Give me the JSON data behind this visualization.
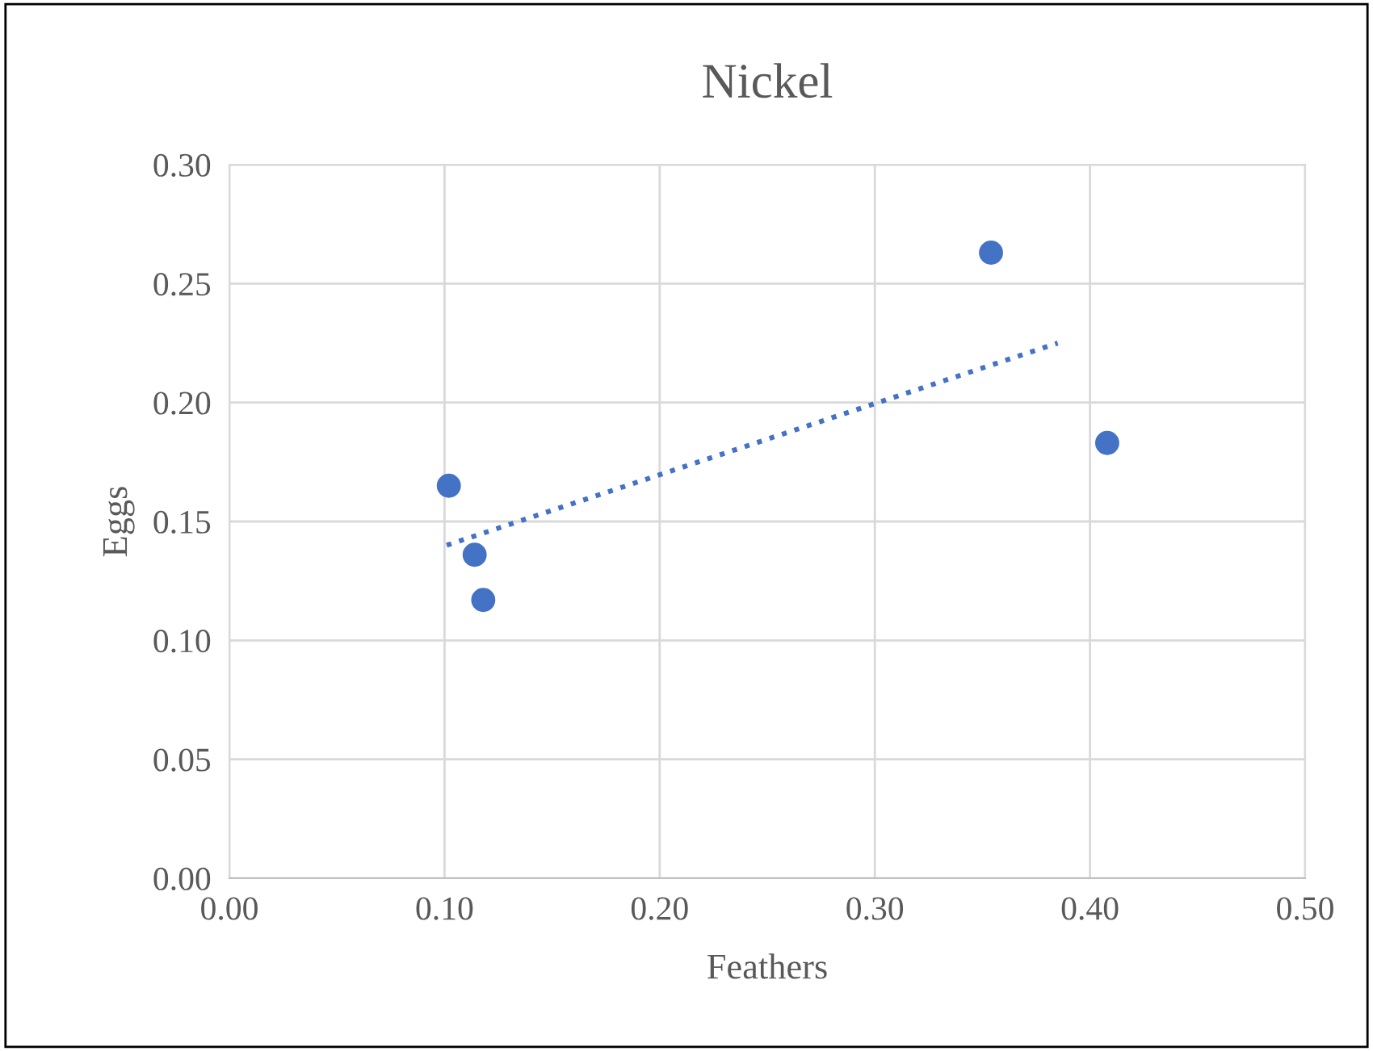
{
  "chart_data": {
    "type": "scatter",
    "title": "Nickel",
    "xlabel": "Feathers",
    "ylabel": "Eggs",
    "xlim": [
      0,
      0.5
    ],
    "xticks": [
      {
        "value": 0,
        "label": "0.00"
      },
      {
        "value": 0.1,
        "label": "0.10"
      },
      {
        "value": 0.2,
        "label": "0.20"
      },
      {
        "value": 0.3,
        "label": "0.30"
      },
      {
        "value": 0.4,
        "label": "0.40"
      },
      {
        "value": 0.5,
        "label": "0.50"
      }
    ],
    "ylim": [
      0,
      0.3
    ],
    "yticks": [
      {
        "value": 0,
        "label": "0.00"
      },
      {
        "value": 0.05,
        "label": "0.05"
      },
      {
        "value": 0.1,
        "label": "0.10"
      },
      {
        "value": 0.15,
        "label": "0.15"
      },
      {
        "value": 0.2,
        "label": "0.20"
      },
      {
        "value": 0.25,
        "label": "0.25"
      },
      {
        "value": 0.3,
        "label": "0.30"
      }
    ],
    "grid": true,
    "series": [
      {
        "color": "#4472c4",
        "marker": "circle",
        "x": [
          0.102,
          0.114,
          0.118,
          0.354,
          0.408
        ],
        "values": [
          0.165,
          0.136,
          0.117,
          0.263,
          0.183
        ]
      },
      {
        "type": "line",
        "color": "#4472c4",
        "line_style": "dotted",
        "marker": "none",
        "x": [
          0.101,
          0.385
        ],
        "values": [
          0.14,
          0.225
        ]
      }
    ]
  }
}
